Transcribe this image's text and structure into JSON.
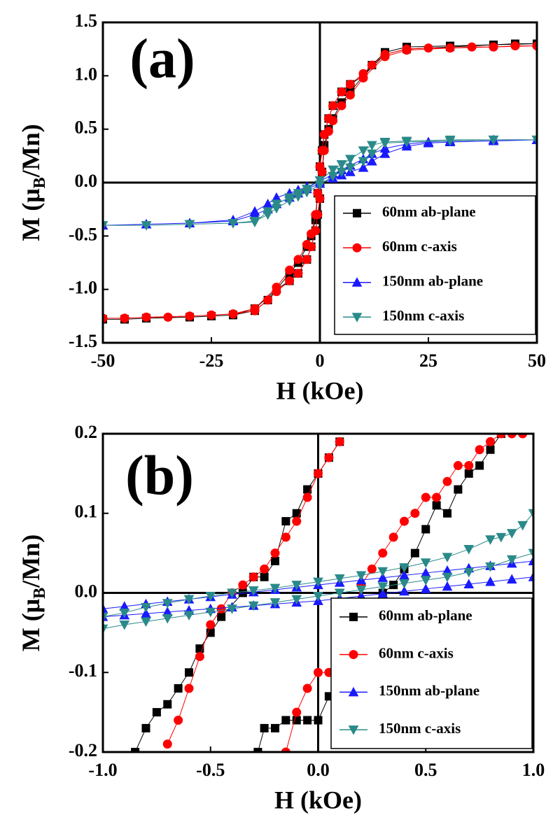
{
  "chart_data": [
    {
      "type": "line",
      "annotation": "(a)",
      "xlabel": "H (kOe)",
      "ylabel_parts": [
        "M (μ",
        "B",
        "/Mn)"
      ],
      "xlim": [
        -50,
        50
      ],
      "xticks": [
        -50,
        -25,
        0,
        25,
        50
      ],
      "ylim": [
        -1.5,
        1.5
      ],
      "yticks": [
        -1.5,
        {
          "value": -1,
          "label": "-1.0"
        },
        -0.5,
        {
          "value": 0,
          "label": "0.0"
        },
        0.5,
        {
          "value": 1,
          "label": "1.0"
        },
        1.5
      ],
      "legend": "lower right",
      "series": [
        {
          "name": "60nm   ab-plane",
          "color": "#000000",
          "marker": "square",
          "x": [
            50,
            45,
            40,
            30,
            20,
            15,
            12,
            10,
            7,
            5,
            3,
            2,
            1,
            0.5,
            0,
            -0.5,
            -1,
            -2,
            -3,
            -5,
            -7,
            -10,
            -15,
            -20,
            -25,
            -30,
            -40,
            -45,
            -50,
            -45,
            -40,
            -30,
            -20,
            -15,
            -12,
            -10,
            -7,
            -5,
            -3,
            -2,
            -1,
            -0.5,
            0,
            0.5,
            1,
            2,
            3,
            5,
            7,
            10,
            15,
            20,
            30,
            40,
            50
          ],
          "values": [
            1.3,
            1.3,
            1.29,
            1.28,
            1.27,
            1.22,
            1.1,
            1.0,
            0.92,
            0.85,
            0.72,
            0.6,
            0.45,
            0.3,
            0.15,
            -0.1,
            -0.35,
            -0.5,
            -0.6,
            -0.75,
            -0.85,
            -1.0,
            -1.18,
            -1.24,
            -1.25,
            -1.26,
            -1.27,
            -1.28,
            -1.28,
            -1.28,
            -1.27,
            -1.26,
            -1.24,
            -1.2,
            -1.1,
            -1.0,
            -0.92,
            -0.85,
            -0.72,
            -0.6,
            -0.45,
            -0.3,
            -0.15,
            0.1,
            0.35,
            0.5,
            0.6,
            0.75,
            0.85,
            1.0,
            1.2,
            1.25,
            1.27,
            1.29,
            1.3
          ]
        },
        {
          "name": "60nm   c-axis",
          "color": "#ff0000",
          "marker": "circle",
          "x": [
            50,
            45,
            40,
            35,
            30,
            25,
            20,
            15,
            12,
            10,
            7,
            5,
            3,
            2,
            1,
            0.5,
            0,
            -0.5,
            -1,
            -2,
            -3,
            -5,
            -7,
            -10,
            -15,
            -20,
            -25,
            -30,
            -35,
            -40,
            -45,
            -50,
            -45,
            -40,
            -30,
            -20,
            -15,
            -12,
            -10,
            -7,
            -5,
            -3,
            -2,
            -1,
            -0.5,
            0,
            0.5,
            1,
            2,
            3,
            5,
            7,
            10,
            15,
            20,
            30,
            40,
            50
          ],
          "values": [
            1.28,
            1.28,
            1.27,
            1.27,
            1.26,
            1.26,
            1.25,
            1.2,
            1.1,
            1.02,
            0.92,
            0.85,
            0.72,
            0.6,
            0.45,
            0.3,
            0.15,
            -0.1,
            -0.3,
            -0.48,
            -0.58,
            -0.72,
            -0.82,
            -0.98,
            -1.18,
            -1.23,
            -1.24,
            -1.25,
            -1.26,
            -1.26,
            -1.27,
            -1.27,
            -1.27,
            -1.26,
            -1.25,
            -1.23,
            -1.2,
            -1.1,
            -1.02,
            -0.92,
            -0.85,
            -0.72,
            -0.6,
            -0.45,
            -0.3,
            -0.15,
            0.1,
            0.3,
            0.48,
            0.58,
            0.72,
            0.82,
            0.98,
            1.18,
            1.24,
            1.26,
            1.27,
            1.28
          ]
        },
        {
          "name": "150nm ab-plane",
          "color": "#1a1aff",
          "marker": "triangle-up",
          "x": [
            50,
            40,
            30,
            25,
            20,
            15,
            12,
            10,
            7,
            5,
            3,
            0,
            -3,
            -5,
            -7,
            -10,
            -12,
            -15,
            -20,
            -30,
            -40,
            -50,
            -40,
            -30,
            -20,
            -15,
            -12,
            -10,
            -7,
            -5,
            -3,
            0,
            3,
            5,
            7,
            10,
            12,
            15,
            20,
            25,
            30,
            40,
            50
          ],
          "values": [
            0.4,
            0.4,
            0.39,
            0.38,
            0.36,
            0.32,
            0.27,
            0.22,
            0.16,
            0.12,
            0.08,
            0.01,
            -0.04,
            -0.07,
            -0.1,
            -0.14,
            -0.2,
            -0.27,
            -0.35,
            -0.38,
            -0.39,
            -0.4,
            -0.39,
            -0.38,
            -0.36,
            -0.3,
            -0.25,
            -0.2,
            -0.14,
            -0.1,
            -0.06,
            -0.01,
            0.04,
            0.07,
            0.1,
            0.14,
            0.2,
            0.27,
            0.34,
            0.37,
            0.38,
            0.39,
            0.4
          ]
        },
        {
          "name": "150nm c-axis",
          "color": "#2a8a8a",
          "marker": "triangle-down",
          "x": [
            50,
            40,
            30,
            20,
            15,
            12,
            10,
            7,
            5,
            3,
            0,
            -3,
            -5,
            -7,
            -10,
            -12,
            -15,
            -20,
            -30,
            -40,
            -50,
            -40,
            -30,
            -20,
            -15,
            -12,
            -10,
            -7,
            -5,
            -3,
            0,
            3,
            5,
            7,
            10,
            12,
            15,
            20,
            30,
            40,
            50
          ],
          "values": [
            0.4,
            0.4,
            0.4,
            0.39,
            0.38,
            0.35,
            0.3,
            0.22,
            0.17,
            0.12,
            0.02,
            -0.06,
            -0.1,
            -0.14,
            -0.2,
            -0.27,
            -0.37,
            -0.38,
            -0.39,
            -0.4,
            -0.4,
            -0.4,
            -0.39,
            -0.38,
            -0.36,
            -0.3,
            -0.24,
            -0.17,
            -0.13,
            -0.09,
            -0.02,
            0.06,
            0.1,
            0.14,
            0.2,
            0.27,
            0.37,
            0.38,
            0.39,
            0.4,
            0.4
          ]
        }
      ]
    },
    {
      "type": "line",
      "annotation": "(b)",
      "xlabel": "H (kOe)",
      "ylabel_parts": [
        "M (μ",
        "B",
        "/Mn)"
      ],
      "xlim": [
        -1,
        1
      ],
      "xticks": [
        {
          "value": -1,
          "label": "-1.0"
        },
        -0.5,
        {
          "value": 0,
          "label": "0.0"
        },
        0.5,
        {
          "value": 1,
          "label": "1.0"
        }
      ],
      "ylim": [
        -0.2,
        0.2
      ],
      "yticks": [
        -0.2,
        -0.1,
        {
          "value": 0,
          "label": "0.0"
        },
        0.1,
        0.2
      ],
      "legend": "lower right",
      "series": [
        {
          "name": "60nm   ab-plane",
          "color": "#000000",
          "marker": "square",
          "x": [
            0.1,
            0.05,
            0,
            -0.05,
            -0.1,
            -0.15,
            -0.2,
            -0.25,
            -0.3,
            -0.35,
            -0.45,
            -0.5,
            -0.55,
            -0.6,
            -0.65,
            -0.7,
            -0.75,
            -0.8,
            -0.85,
            null,
            -0.28,
            -0.25,
            -0.2,
            -0.15,
            -0.1,
            -0.05,
            0,
            0.05,
            0.1,
            0.15,
            0.2,
            0.25,
            0.3,
            0.35,
            0.4,
            0.45,
            0.5,
            0.55,
            0.6,
            0.65,
            0.7,
            0.75,
            0.8,
            0.85
          ],
          "values": [
            0.19,
            0.17,
            0.15,
            0.13,
            0.1,
            0.09,
            0.04,
            0.02,
            0.02,
            0.0,
            -0.03,
            -0.05,
            -0.07,
            -0.1,
            -0.12,
            -0.14,
            -0.15,
            -0.17,
            -0.2,
            null,
            -0.2,
            -0.17,
            -0.17,
            -0.16,
            -0.16,
            -0.16,
            -0.16,
            -0.13,
            -0.12,
            -0.09,
            -0.05,
            -0.02,
            0.0,
            0.01,
            0.03,
            0.05,
            0.08,
            0.11,
            0.1,
            0.13,
            0.15,
            0.16,
            0.18,
            0.2
          ]
        },
        {
          "name": "60nm   c-axis",
          "color": "#ff0000",
          "marker": "circle",
          "x": [
            0.1,
            0.05,
            0,
            -0.05,
            -0.1,
            -0.15,
            -0.2,
            -0.25,
            -0.3,
            -0.35,
            -0.4,
            -0.45,
            -0.5,
            -0.55,
            -0.6,
            -0.65,
            -0.7,
            null,
            -0.15,
            -0.1,
            -0.05,
            0,
            0.05,
            0.1,
            0.15,
            0.2,
            0.25,
            0.3,
            0.35,
            0.4,
            0.45,
            0.5,
            0.55,
            0.6,
            0.65,
            0.7,
            0.75,
            0.8,
            0.85,
            0.9,
            0.95
          ],
          "values": [
            0.19,
            0.17,
            0.15,
            0.12,
            0.09,
            0.07,
            0.05,
            0.03,
            0.02,
            0.01,
            0.0,
            -0.02,
            -0.04,
            -0.08,
            -0.12,
            -0.16,
            -0.19,
            null,
            -0.2,
            -0.15,
            -0.12,
            -0.1,
            -0.1,
            -0.08,
            -0.05,
            0.01,
            0.03,
            0.05,
            0.07,
            0.09,
            0.1,
            0.12,
            0.12,
            0.14,
            0.16,
            0.16,
            0.18,
            0.19,
            0.2,
            0.2,
            0.2
          ]
        },
        {
          "name": "150nm ab-plane",
          "color": "#1a1aff",
          "marker": "triangle-up",
          "x": [
            1,
            0.9,
            0.8,
            0.7,
            0.6,
            0.5,
            0.4,
            0.3,
            0.2,
            0.1,
            0,
            -0.1,
            -0.2,
            -0.3,
            -0.4,
            -0.5,
            -0.6,
            -0.7,
            -0.8,
            -0.9,
            -1,
            null,
            -1,
            -0.9,
            -0.8,
            -0.7,
            -0.6,
            -0.5,
            -0.4,
            -0.3,
            -0.2,
            -0.1,
            0,
            0.1,
            0.2,
            0.3,
            0.4,
            0.5,
            0.6,
            0.7,
            0.8,
            0.9,
            1
          ],
          "values": [
            0.04,
            0.037,
            0.034,
            0.031,
            0.028,
            0.025,
            0.022,
            0.019,
            0.016,
            0.013,
            0.01,
            0.007,
            0.004,
            0.001,
            -0.002,
            -0.005,
            -0.008,
            -0.011,
            -0.014,
            -0.017,
            -0.02,
            null,
            -0.03,
            -0.028,
            -0.026,
            -0.024,
            -0.022,
            -0.02,
            -0.018,
            -0.016,
            -0.014,
            -0.012,
            -0.01,
            -0.007,
            -0.004,
            -0.001,
            0.002,
            0.005,
            0.008,
            0.011,
            0.014,
            0.017,
            0.02
          ]
        },
        {
          "name": "150nm c-axis",
          "color": "#2a8a8a",
          "marker": "triangle-down",
          "x": [
            1,
            0.95,
            0.9,
            0.85,
            0.8,
            0.7,
            0.6,
            0.5,
            0.4,
            0.3,
            0.2,
            0.1,
            0,
            -0.1,
            -0.2,
            -0.3,
            -0.4,
            -0.5,
            -0.6,
            -0.7,
            -0.8,
            -0.9,
            -1,
            null,
            -1,
            -0.9,
            -0.8,
            -0.7,
            -0.6,
            -0.5,
            -0.4,
            -0.3,
            -0.2,
            -0.1,
            0,
            0.1,
            0.2,
            0.3,
            0.4,
            0.5,
            0.6,
            0.7,
            0.8,
            0.9,
            1
          ],
          "values": [
            0.1,
            0.085,
            0.075,
            0.07,
            0.067,
            0.055,
            0.045,
            0.038,
            0.032,
            0.027,
            0.022,
            0.018,
            0.014,
            0.01,
            0.006,
            0.003,
            0.0,
            -0.004,
            -0.008,
            -0.013,
            -0.018,
            -0.025,
            -0.03,
            null,
            -0.045,
            -0.04,
            -0.036,
            -0.032,
            -0.028,
            -0.024,
            -0.02,
            -0.016,
            -0.012,
            -0.008,
            -0.004,
            0.0,
            0.004,
            0.008,
            0.012,
            0.016,
            0.02,
            0.026,
            0.033,
            0.042,
            0.05
          ]
        }
      ]
    }
  ]
}
